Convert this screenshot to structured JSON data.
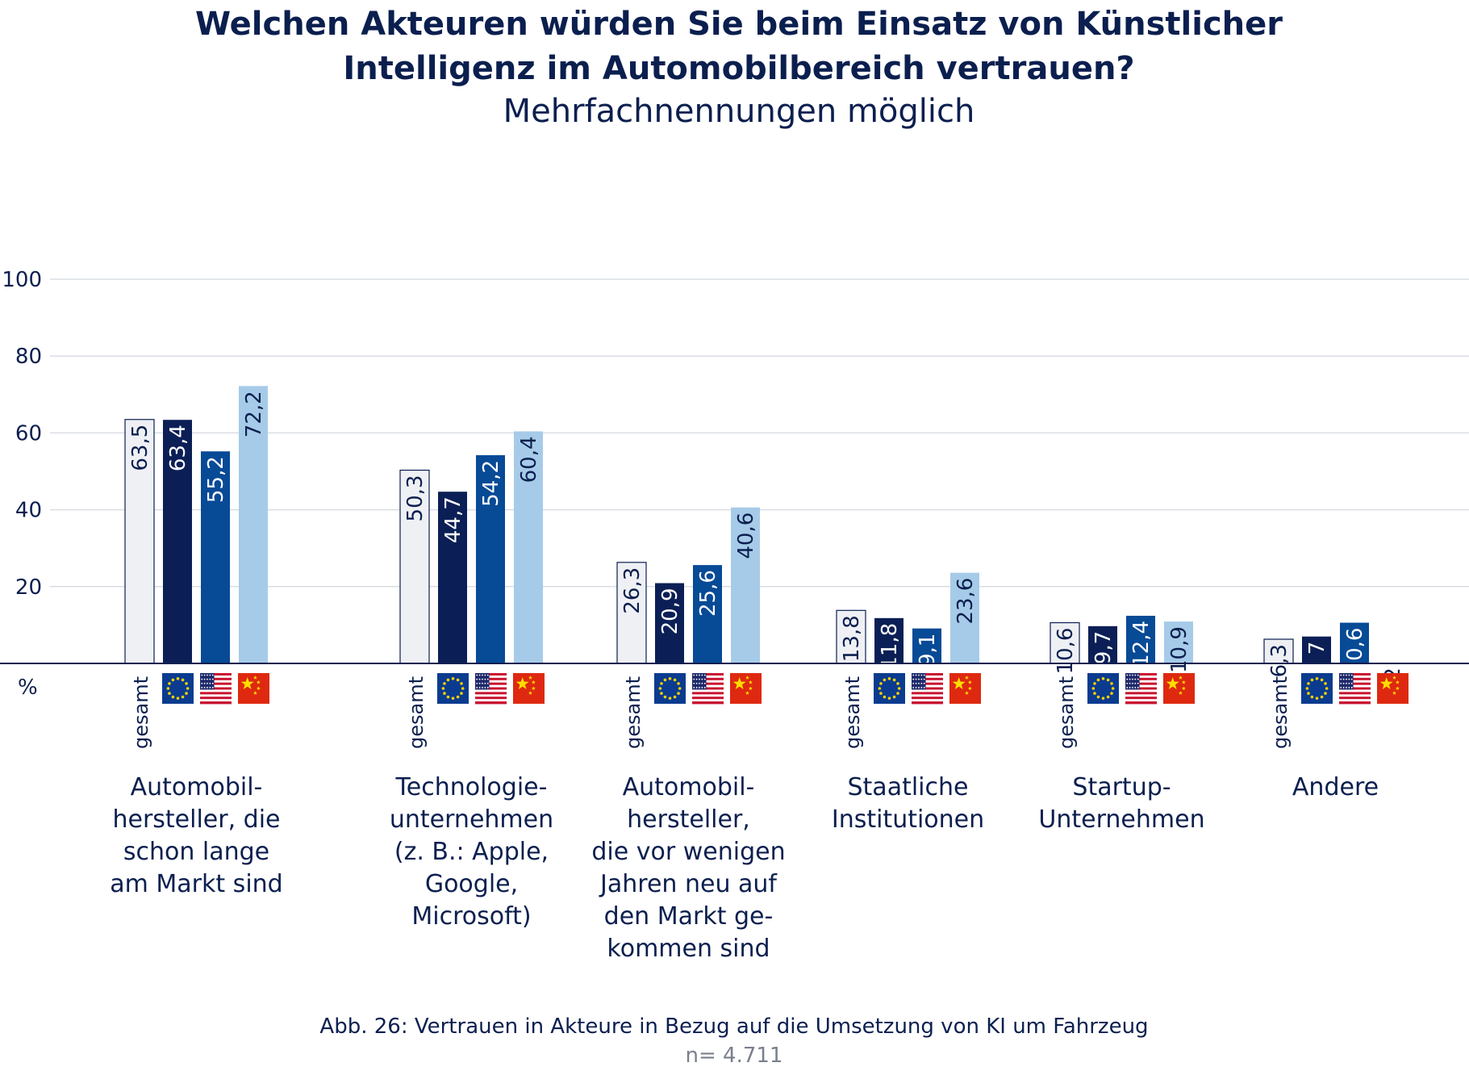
{
  "chart_data": {
    "type": "bar",
    "title_lines": [
      "Welchen Akteuren würden Sie beim Einsatz von Künstlicher",
      "Intelligenz im Automobilbereich vertrauen?"
    ],
    "subtitle": "Mehrfachnennungen möglich",
    "ylabel": "%",
    "ylim": [
      0,
      100
    ],
    "yticks": [
      20,
      40,
      60,
      80,
      100
    ],
    "grid": true,
    "categories": [
      [
        "Automobil-",
        "hersteller, die",
        "schon lange",
        "am Markt sind"
      ],
      [
        "Technologie-",
        "unternehmen",
        "(z. B.: Apple,",
        "Google,",
        "Microsoft)"
      ],
      [
        "Automobil-",
        "hersteller,",
        "die vor wenigen",
        "Jahren neu auf",
        "den Markt ge-",
        "kommen sind"
      ],
      [
        "Staatliche",
        "Institutionen"
      ],
      [
        "Startup-",
        "Unternehmen"
      ],
      [
        "Andere"
      ]
    ],
    "series": [
      {
        "name": "gesamt",
        "key": "gesamt",
        "color": "#eef0f4",
        "stroke": "#0b1f4f",
        "label_color": "#0b1f4f",
        "values": [
          63.5,
          50.3,
          26.3,
          13.8,
          10.6,
          6.3
        ],
        "value_labels": [
          "63,5",
          "50,3",
          "26,3",
          "13,8",
          "10,6",
          "6,3"
        ]
      },
      {
        "key": "eu-flag",
        "color": "#0b1f56",
        "stroke": "none",
        "label_color": "#ffffff",
        "values": [
          63.4,
          44.7,
          20.9,
          11.8,
          9.7,
          7
        ],
        "value_labels": [
          "63,4",
          "44,7",
          "20,9",
          "11,8",
          "9,7",
          "7"
        ]
      },
      {
        "key": "us-flag",
        "color": "#074a96",
        "stroke": "none",
        "label_color": "#ffffff",
        "values": [
          55.2,
          54.2,
          25.6,
          9.1,
          12.4,
          10.6
        ],
        "value_labels": [
          "55,2",
          "54,2",
          "25,6",
          "9,1",
          "12,4",
          "10,6"
        ]
      },
      {
        "key": "china-flag",
        "color": "#a6cbe8",
        "stroke": "none",
        "label_color": "#0b1f4f",
        "values": [
          72.2,
          60.4,
          40.6,
          23.6,
          10.9,
          0.2
        ],
        "value_labels": [
          "72,2",
          "60,4",
          "40,6",
          "23,6",
          "10,9",
          "0,2"
        ]
      }
    ],
    "caption": "Abb. 26: Vertrauen in Akteure in Bezug auf die Umsetzung von KI um Fahrzeug",
    "sample_size": "n= 4.711",
    "colors": {
      "text": "#0b1f4f",
      "grid": "#d9dde3",
      "axis": "#0b1f4f",
      "n_text": "#7a7f8c"
    },
    "legend": "flags below each group"
  }
}
